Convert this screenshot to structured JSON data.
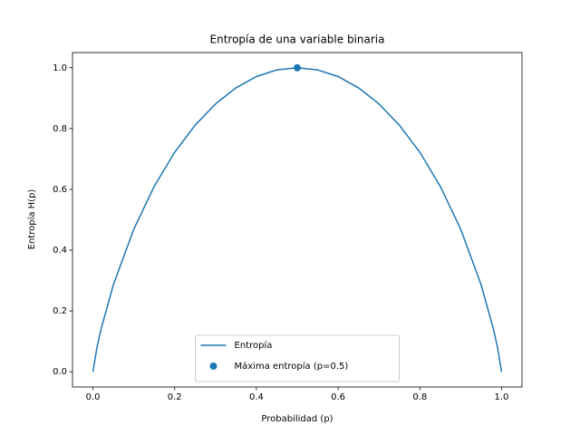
{
  "chart_data": {
    "type": "line",
    "title": "Entropía de una variable binaria",
    "x_label": "Probabilidad (p)",
    "y_label": "Entropía H(p)",
    "x": [
      0,
      0.01,
      0.02,
      0.05,
      0.1,
      0.15,
      0.2,
      0.25,
      0.3,
      0.35,
      0.4,
      0.45,
      0.5,
      0.55,
      0.6,
      0.65,
      0.7,
      0.75,
      0.8,
      0.85,
      0.9,
      0.95,
      0.98,
      0.99,
      1
    ],
    "series": [
      {
        "name": "Entropía",
        "type": "line",
        "color": "#1f77b4",
        "values": [
          0,
          0.081,
          0.141,
          0.286,
          0.469,
          0.61,
          0.722,
          0.811,
          0.881,
          0.934,
          0.971,
          0.993,
          1,
          0.993,
          0.971,
          0.934,
          0.881,
          0.811,
          0.722,
          0.61,
          0.469,
          0.286,
          0.141,
          0.081,
          0
        ]
      },
      {
        "name": "Máxima entropía (p=0.5)",
        "type": "scatter",
        "color": "#1f77b4",
        "x": [
          0.5
        ],
        "values": [
          1
        ]
      }
    ],
    "xlim": [
      -0.05,
      1.05
    ],
    "ylim": [
      -0.05,
      1.05
    ],
    "xticks": [
      {
        "value": 0,
        "label": "0.0"
      },
      0.2,
      0.4,
      0.6,
      0.8,
      {
        "value": 1,
        "label": "1.0"
      }
    ],
    "yticks": [
      {
        "value": 0,
        "label": "0.0"
      },
      0.2,
      0.4,
      0.6,
      0.8,
      {
        "value": 1,
        "label": "1.0"
      }
    ],
    "legend": "lower center"
  }
}
